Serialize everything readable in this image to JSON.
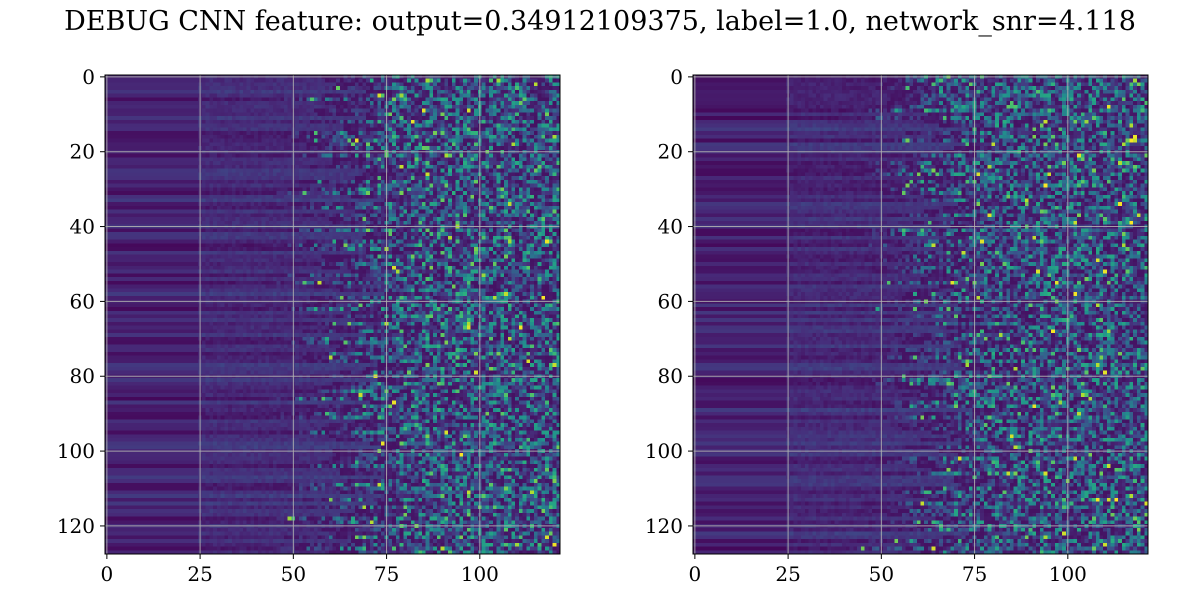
{
  "title": "DEBUG CNN feature: output=0.34912109375, label=1.0, network_snr=4.118",
  "chart_data": [
    {
      "type": "heatmap",
      "colormap": "viridis",
      "grid": true,
      "shape": [
        128,
        122
      ],
      "xlim": [
        -0.5,
        121.5
      ],
      "ylim": [
        127.5,
        -0.5
      ],
      "x_ticks": [
        0,
        25,
        50,
        75,
        100
      ],
      "x_tick_labels": [
        "0",
        "25",
        "50",
        "75",
        "100"
      ],
      "y_ticks": [
        0,
        20,
        40,
        60,
        80,
        100,
        120
      ],
      "y_tick_labels": [
        "0",
        "20",
        "40",
        "60",
        "80",
        "100",
        "120"
      ],
      "value_range": [
        0,
        1
      ],
      "seed": 11
    },
    {
      "type": "heatmap",
      "colormap": "viridis",
      "grid": true,
      "shape": [
        128,
        122
      ],
      "xlim": [
        -0.5,
        121.5
      ],
      "ylim": [
        127.5,
        -0.5
      ],
      "x_ticks": [
        0,
        25,
        50,
        75,
        100
      ],
      "x_tick_labels": [
        "0",
        "25",
        "50",
        "75",
        "100"
      ],
      "y_ticks": [
        0,
        20,
        40,
        60,
        80,
        100,
        120
      ],
      "y_tick_labels": [
        "0",
        "20",
        "40",
        "60",
        "80",
        "100",
        "120"
      ],
      "value_range": [
        0,
        1
      ],
      "seed": 29
    }
  ]
}
